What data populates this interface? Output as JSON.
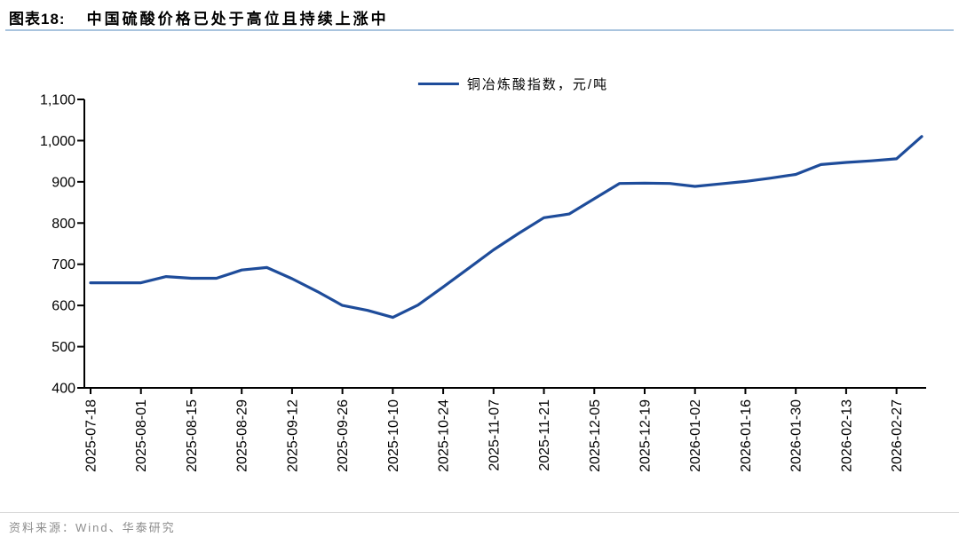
{
  "header": {
    "title_prefix": "图表18:",
    "title": "中国硫酸价格已处于高位且持续上涨中"
  },
  "legend": {
    "label": "铜冶炼酸指数，元/吨"
  },
  "footer": {
    "source": "资料来源：Wind、华泰研究"
  },
  "colors": {
    "line": "#1e4c9a",
    "axis": "#000000",
    "title_underline": "#a9c4de",
    "footer_divider": "#d6d6d6",
    "footer_text": "#8d8d8d"
  },
  "chart_data": {
    "type": "line",
    "title": "中国硫酸价格已处于高位且持续上涨中",
    "ylabel": "元/吨",
    "xlabel": "",
    "ylim": [
      400,
      1100
    ],
    "y_ticks": [
      400,
      500,
      600,
      700,
      800,
      900,
      1000,
      1100
    ],
    "y_tick_labels": [
      "400",
      "500",
      "600",
      "700",
      "800",
      "900",
      "1,000",
      "1,100"
    ],
    "grid": false,
    "legend_position": "top-center",
    "x_tick_labels": [
      "2025-07-18",
      "2025-08-01",
      "2025-08-15",
      "2025-08-29",
      "2025-09-12",
      "2025-09-26",
      "2025-10-10",
      "2025-10-24",
      "2025-11-07",
      "2025-11-21",
      "2025-12-05",
      "2025-12-19",
      "2026-01-02",
      "2026-01-16",
      "2026-01-30",
      "2026-02-13",
      "2026-02-27"
    ],
    "series": [
      {
        "name": "铜冶炼酸指数，元/吨",
        "x": [
          "2025-07-18",
          "2025-07-25",
          "2025-08-01",
          "2025-08-08",
          "2025-08-15",
          "2025-08-22",
          "2025-08-29",
          "2025-09-05",
          "2025-09-12",
          "2025-09-19",
          "2025-09-26",
          "2025-10-03",
          "2025-10-10",
          "2025-10-17",
          "2025-10-24",
          "2025-10-31",
          "2025-11-07",
          "2025-11-14",
          "2025-11-21",
          "2025-11-28",
          "2025-12-05",
          "2025-12-12",
          "2025-12-19",
          "2025-12-26",
          "2026-01-02",
          "2026-01-09",
          "2026-01-16",
          "2026-01-23",
          "2026-01-30",
          "2026-02-06",
          "2026-02-13",
          "2026-02-20",
          "2026-02-27",
          "2026-03-06"
        ],
        "values": [
          655,
          655,
          655,
          670,
          666,
          666,
          686,
          692,
          665,
          634,
          600,
          588,
          571,
          601,
          645,
          690,
          735,
          775,
          813,
          822,
          859,
          896,
          897,
          896,
          889,
          895,
          901,
          909,
          918,
          942,
          947,
          951,
          956,
          1010
        ]
      }
    ]
  }
}
